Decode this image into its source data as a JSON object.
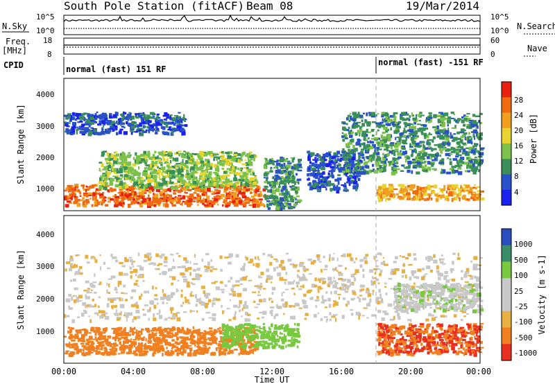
{
  "header": {
    "station": "South Pole Station (fitACF)",
    "beam": "Beam 08",
    "date": "19/Mar/2014"
  },
  "noise_panel": {
    "left_label": "N.Sky",
    "right_label": "N.Search",
    "left_ticks": [
      "10^5",
      "10^0"
    ],
    "right_ticks": [
      "10^5",
      "10^0"
    ]
  },
  "freq_panel": {
    "left_label_1": "Freq.",
    "left_label_2": "[MHz]",
    "right_label": "Nave",
    "left_ticks": [
      "18",
      "8"
    ],
    "right_ticks": [
      "60",
      "0"
    ]
  },
  "cpid_panel": {
    "label": "CPID",
    "modes": [
      {
        "text": "normal (fast) 151 RF",
        "start_hour": 0
      },
      {
        "text": "normal (fast) -151 RF",
        "start_hour": 18
      }
    ]
  },
  "power_panel": {
    "ylabel": "Slant Range [km]",
    "yticks": [
      "1000",
      "2000",
      "3000",
      "4000"
    ],
    "colorbar_label": "Power [dB]",
    "colorbar_ticks": [
      "4",
      "8",
      "12",
      "16",
      "20",
      "24",
      "28"
    ],
    "colors": [
      "#1a20ee",
      "#2a52c8",
      "#3a8e5a",
      "#7cc24a",
      "#e8d430",
      "#f0a020",
      "#f06a10",
      "#e82010"
    ]
  },
  "velocity_panel": {
    "ylabel": "Slant Range [km]",
    "yticks": [
      "1000",
      "2000",
      "3000",
      "4000"
    ],
    "colorbar_label": "Velocity [m s-1]",
    "colorbar_ticks": [
      "1000",
      "500",
      "100",
      "25",
      "-25",
      "-100",
      "-500",
      "-1000"
    ],
    "colors": [
      "#2a4ec0",
      "#3a8e6a",
      "#78c840",
      "#c8c8c8",
      "#c8c8c8",
      "#e8b040",
      "#f08020",
      "#e83020"
    ]
  },
  "xaxis": {
    "label": "Time UT",
    "ticks": [
      "00:00",
      "04:00",
      "08:00",
      "12:00",
      "16:00",
      "20:00",
      "00:00"
    ]
  },
  "chart_data": [
    {
      "type": "heatmap",
      "title": "",
      "xlabel": "Time UT",
      "ylabel": "Slant Range [km]",
      "xlim": [
        0,
        24
      ],
      "ylim": [
        200,
        4600
      ],
      "colorbar": "Power [dB]",
      "bands": [
        {
          "t0": 0,
          "t1": 11.5,
          "r0": 400,
          "r1": 1100,
          "value": 28
        },
        {
          "t0": 2,
          "t1": 11,
          "r0": 1000,
          "r1": 2200,
          "value": 16
        },
        {
          "t0": 0,
          "t1": 7,
          "r0": 2800,
          "r1": 3500,
          "value": 8
        },
        {
          "t0": 11.5,
          "t1": 13.5,
          "r0": 300,
          "r1": 2000,
          "value": 10
        },
        {
          "t0": 14,
          "t1": 17,
          "r0": 900,
          "r1": 2200,
          "value": 8
        },
        {
          "t0": 16,
          "t1": 24,
          "r0": 1500,
          "r1": 3500,
          "value": 10
        },
        {
          "t0": 18,
          "t1": 24,
          "r0": 600,
          "r1": 1100,
          "value": 22
        }
      ]
    },
    {
      "type": "heatmap",
      "title": "",
      "xlabel": "Time UT",
      "ylabel": "Slant Range [km]",
      "xlim": [
        0,
        24
      ],
      "ylim": [
        200,
        4600
      ],
      "colorbar": "Velocity [m s-1]",
      "bands": [
        {
          "t0": 0,
          "t1": 11,
          "r0": 500,
          "r1": 1300,
          "value": -300
        },
        {
          "t0": 9,
          "t1": 13.5,
          "r0": 700,
          "r1": 1400,
          "value": 200
        },
        {
          "t0": 0,
          "t1": 24,
          "r0": 1500,
          "r1": 3500,
          "value": 0
        },
        {
          "t0": 18,
          "t1": 24,
          "r0": 500,
          "r1": 1400,
          "value": -500
        },
        {
          "t0": 19,
          "t1": 24,
          "r0": 1800,
          "r1": 2600,
          "value": 60
        }
      ]
    }
  ]
}
